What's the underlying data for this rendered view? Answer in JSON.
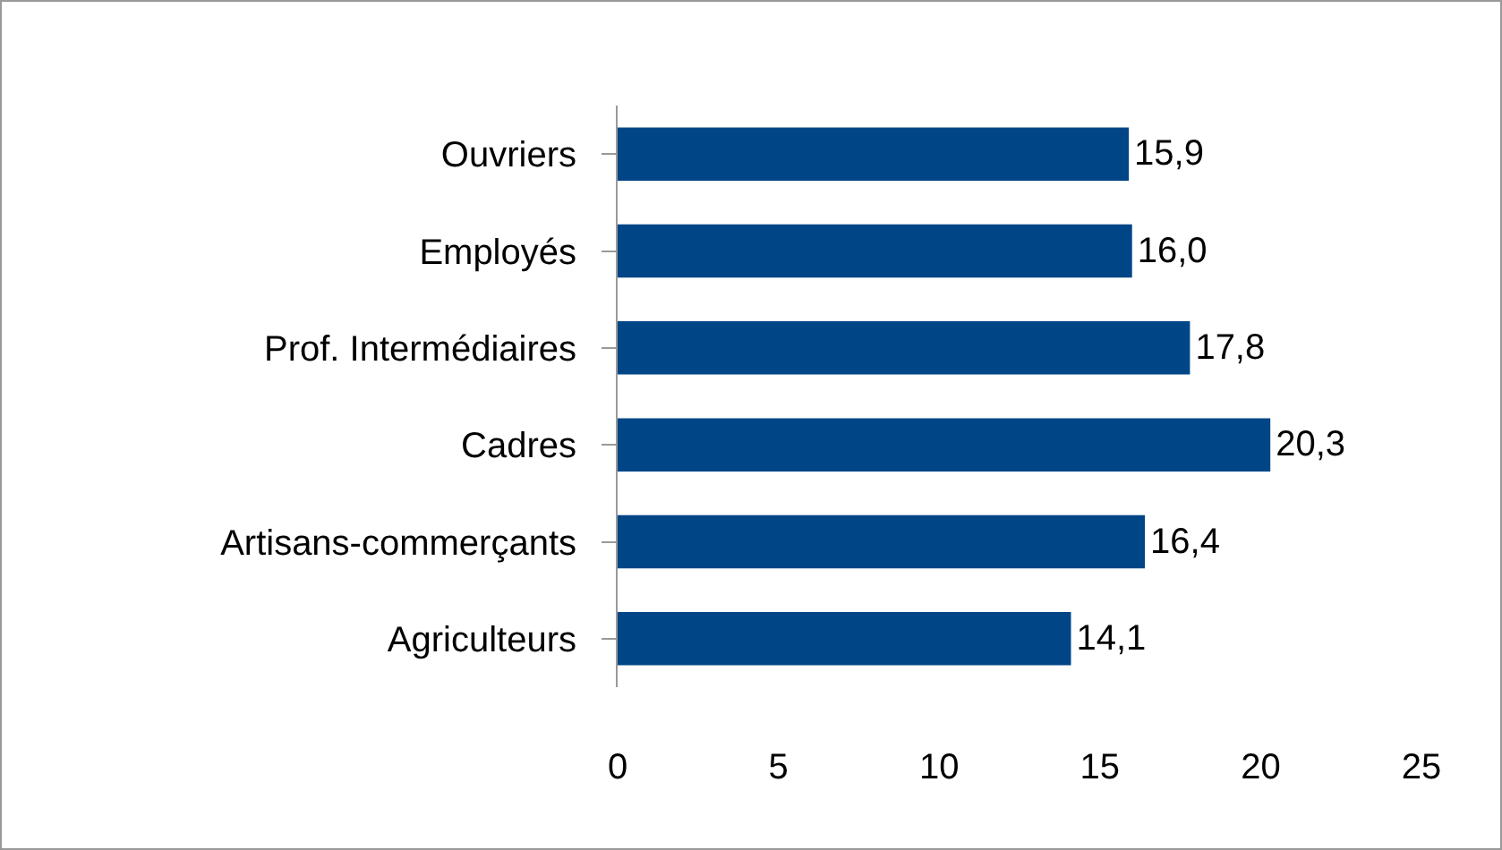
{
  "chart_data": {
    "type": "bar",
    "orientation": "horizontal",
    "categories": [
      "Ouvriers",
      "Employés",
      "Prof. Intermédiaires",
      "Cadres",
      "Artisans-commerçants",
      "Agriculteurs"
    ],
    "values": [
      15.9,
      16.0,
      17.8,
      20.3,
      16.4,
      14.1
    ],
    "value_labels": [
      "15,9",
      "16,0",
      "17,8",
      "20,3",
      "16,4",
      "14,1"
    ],
    "color": "#004586",
    "xlim": [
      0,
      25
    ],
    "xticks": [
      0,
      5,
      10,
      15,
      20,
      25
    ],
    "grid": false
  }
}
